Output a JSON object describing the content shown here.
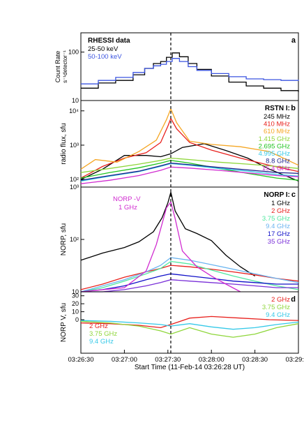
{
  "figure": {
    "xlabel": "Start Time (11-Feb-14 03:26:28 UT)",
    "x_tick_labels": [
      "03:26:30",
      "03:27:00",
      "03:27:30",
      "03:28:00",
      "03:28:30",
      "03:29:00"
    ],
    "peak_marker_time": "03:27:32"
  },
  "colors": {
    "black": "#000000",
    "red": "#e8201c",
    "orange": "#f5a623",
    "lime": "#8ed63a",
    "green": "#21c421",
    "cyan": "#35c9e8",
    "navy": "#1b1f8a",
    "magenta": "#d02bd0",
    "blue": "#3b54e0",
    "skyblue": "#48a8ee",
    "darkblue": "#1010c8",
    "purple": "#7a30d8",
    "teal": "#50e8a0",
    "lightblue": "#6ab4f0"
  },
  "chart_data": [
    {
      "type": "line",
      "panel": "a",
      "ylabel_line1": "Count Rate",
      "ylabel_line2": "s⁻¹detector⁻¹",
      "y_tick_labels": [
        "10",
        "100"
      ],
      "yscale": "log",
      "ylim": [
        10,
        250
      ],
      "legend_title": "RHESSI data",
      "series": [
        {
          "name": "25-50 keV",
          "color": "black",
          "style": "step",
          "x": [
            "03:26:30",
            "03:26:42",
            "03:26:54",
            "03:27:06",
            "03:27:14",
            "03:27:20",
            "03:27:25",
            "03:27:29",
            "03:27:33",
            "03:27:38",
            "03:27:44",
            "03:27:50",
            "03:28:00",
            "03:28:12",
            "03:28:24",
            "03:28:36",
            "03:28:48",
            "03:29:00"
          ],
          "y": [
            18,
            23,
            26,
            34,
            46,
            58,
            64,
            78,
            96,
            80,
            58,
            44,
            32,
            24,
            20,
            18,
            16,
            15
          ]
        },
        {
          "name": "50-100 keV",
          "color": "blue",
          "style": "step",
          "x": [
            "03:26:30",
            "03:26:42",
            "03:26:54",
            "03:27:06",
            "03:27:14",
            "03:27:20",
            "03:27:25",
            "03:27:29",
            "03:27:33",
            "03:27:38",
            "03:27:44",
            "03:27:50",
            "03:28:00",
            "03:28:12",
            "03:28:24",
            "03:28:36",
            "03:28:48",
            "03:29:00"
          ],
          "y": [
            22,
            26,
            30,
            38,
            46,
            52,
            56,
            64,
            74,
            64,
            50,
            42,
            36,
            31,
            28,
            27,
            26,
            27
          ]
        }
      ]
    },
    {
      "type": "line",
      "panel": "b",
      "ylabel": "radio flux, sfu",
      "y_tick_labels": [
        "10²",
        "10³",
        "10⁴"
      ],
      "yscale": "log",
      "ylim": [
        60,
        20000
      ],
      "legend_title": "RSTN  I:",
      "series": [
        {
          "name": "245 MHz",
          "color": "black",
          "x": [
            "03:26:30",
            "03:26:45",
            "03:27:00",
            "03:27:15",
            "03:27:25",
            "03:27:32",
            "03:27:40",
            "03:27:55",
            "03:28:10",
            "03:28:25",
            "03:28:40",
            "03:28:55",
            "03:29:00"
          ],
          "y": [
            100,
            200,
            500,
            500,
            460,
            560,
            860,
            1100,
            700,
            420,
            200,
            110,
            90
          ]
        },
        {
          "name": "410 MHz",
          "color": "red",
          "x": [
            "03:26:30",
            "03:26:45",
            "03:27:00",
            "03:27:15",
            "03:27:25",
            "03:27:30",
            "03:27:32",
            "03:27:36",
            "03:27:45",
            "03:28:00",
            "03:28:20",
            "03:28:40",
            "03:29:00"
          ],
          "y": [
            110,
            240,
            420,
            600,
            1200,
            3600,
            6000,
            3000,
            1200,
            720,
            420,
            260,
            170
          ]
        },
        {
          "name": "610 MHz",
          "color": "orange",
          "x": [
            "03:26:30",
            "03:26:40",
            "03:26:55",
            "03:27:10",
            "03:27:22",
            "03:27:29",
            "03:27:32",
            "03:27:36",
            "03:27:45",
            "03:28:00",
            "03:28:20",
            "03:28:40",
            "03:29:00"
          ],
          "y": [
            200,
            380,
            320,
            650,
            1400,
            5500,
            11500,
            4500,
            1300,
            1050,
            900,
            650,
            260
          ]
        },
        {
          "name": "1.415 GHz",
          "color": "lime",
          "x": [
            "03:26:30",
            "03:26:50",
            "03:27:10",
            "03:27:25",
            "03:27:32",
            "03:27:45",
            "03:28:05",
            "03:28:25",
            "03:28:45",
            "03:29:00"
          ],
          "y": [
            160,
            210,
            280,
            360,
            420,
            380,
            320,
            280,
            240,
            210
          ]
        },
        {
          "name": "2.695 GHz",
          "color": "green",
          "x": [
            "03:26:30",
            "03:26:50",
            "03:27:10",
            "03:27:25",
            "03:27:32",
            "03:27:45",
            "03:28:05",
            "03:28:25",
            "03:28:45",
            "03:29:00"
          ],
          "y": [
            110,
            160,
            220,
            300,
            360,
            300,
            210,
            150,
            110,
            95
          ]
        },
        {
          "name": "4.995 GHz",
          "color": "cyan",
          "x": [
            "03:26:30",
            "03:26:50",
            "03:27:10",
            "03:27:25",
            "03:27:32",
            "03:27:45",
            "03:28:05",
            "03:28:25",
            "03:28:45",
            "03:29:00"
          ],
          "y": [
            90,
            125,
            170,
            240,
            290,
            260,
            210,
            175,
            140,
            125
          ]
        },
        {
          "name": "8.8 GHz",
          "color": "navy",
          "x": [
            "03:26:30",
            "03:26:50",
            "03:27:10",
            "03:27:25",
            "03:27:32",
            "03:27:45",
            "03:28:05",
            "03:28:25",
            "03:28:45",
            "03:29:00"
          ],
          "y": [
            95,
            130,
            175,
            250,
            300,
            270,
            225,
            190,
            160,
            150
          ]
        },
        {
          "name": "15.4 GHz",
          "color": "magenta",
          "x": [
            "03:26:30",
            "03:26:50",
            "03:27:10",
            "03:27:25",
            "03:27:32",
            "03:27:45",
            "03:28:05",
            "03:28:25",
            "03:28:45",
            "03:29:00"
          ],
          "y": [
            75,
            95,
            130,
            185,
            230,
            215,
            185,
            155,
            130,
            120
          ]
        }
      ]
    },
    {
      "type": "line",
      "panel": "c",
      "ylabel": "NORP, sfu",
      "y_tick_labels": [
        "10",
        "10²",
        "10³"
      ],
      "yscale": "log",
      "ylim": [
        10,
        1000
      ],
      "legend_title": "NORP  I:",
      "left_legend_title": "NORP  -V",
      "left_legend_item": "1 GHz",
      "series": [
        {
          "name": "1 GHz",
          "color": "black",
          "x": [
            "03:26:30",
            "03:26:45",
            "03:27:00",
            "03:27:10",
            "03:27:20",
            "03:27:26",
            "03:27:30",
            "03:27:32",
            "03:27:35",
            "03:27:42",
            "03:27:50",
            "03:28:00",
            "03:28:10",
            "03:28:20",
            "03:28:30"
          ],
          "y": [
            40,
            55,
            70,
            90,
            140,
            260,
            500,
            800,
            350,
            160,
            130,
            95,
            50,
            30,
            20
          ]
        },
        {
          "name": "2 GHz",
          "color": "red",
          "x": [
            "03:26:30",
            "03:26:45",
            "03:27:00",
            "03:27:15",
            "03:27:25",
            "03:27:32",
            "03:27:45",
            "03:28:00",
            "03:28:15",
            "03:28:30",
            "03:28:45",
            "03:29:00"
          ],
          "y": [
            11,
            14,
            19,
            24,
            28,
            32,
            30,
            27,
            24,
            21,
            18,
            16
          ]
        },
        {
          "name": "3.75 GHz",
          "color": "teal",
          "x": [
            "03:26:30",
            "03:26:45",
            "03:27:00",
            "03:27:15",
            "03:27:25",
            "03:27:32",
            "03:27:45",
            "03:28:00",
            "03:28:15",
            "03:28:30",
            "03:28:45",
            "03:29:00"
          ],
          "y": [
            10,
            12,
            16,
            22,
            28,
            38,
            34,
            26,
            20,
            16,
            13,
            11
          ]
        },
        {
          "name": "9.4 GHz",
          "color": "lightblue",
          "x": [
            "03:26:30",
            "03:26:45",
            "03:27:00",
            "03:27:15",
            "03:27:25",
            "03:27:32",
            "03:27:45",
            "03:28:00",
            "03:28:15",
            "03:28:30",
            "03:28:45",
            "03:29:00"
          ],
          "y": [
            10,
            13,
            17,
            24,
            32,
            45,
            40,
            33,
            27,
            22,
            18,
            15
          ]
        },
        {
          "name": "17 GHz",
          "color": "darkblue",
          "x": [
            "03:26:30",
            "03:26:45",
            "03:27:00",
            "03:27:15",
            "03:27:25",
            "03:27:32",
            "03:27:45",
            "03:28:00",
            "03:28:15",
            "03:28:30",
            "03:28:45",
            "03:29:00"
          ],
          "y": [
            10,
            11,
            13,
            17,
            20,
            22,
            20,
            18,
            16,
            15,
            14,
            14
          ]
        },
        {
          "name": "35 GHz",
          "color": "purple",
          "x": [
            "03:26:30",
            "03:26:45",
            "03:27:00",
            "03:27:15",
            "03:27:25",
            "03:27:32",
            "03:27:45",
            "03:28:00",
            "03:28:15",
            "03:28:30",
            "03:28:45",
            "03:29:00"
          ],
          "y": [
            10,
            10,
            11,
            13,
            15,
            17,
            16,
            15,
            14,
            13,
            12,
            12
          ]
        },
        {
          "name": "NORP -V 1 GHz",
          "color": "magenta",
          "x": [
            "03:26:30",
            "03:27:00",
            "03:27:15",
            "03:27:22",
            "03:27:26",
            "03:27:29",
            "03:27:32",
            "03:27:35",
            "03:27:40",
            "03:27:50",
            "03:28:00",
            "03:28:10",
            "03:28:20"
          ],
          "y": [
            10,
            12,
            25,
            80,
            200,
            400,
            520,
            250,
            60,
            30,
            20,
            14,
            10
          ]
        }
      ]
    },
    {
      "type": "line",
      "panel": "d",
      "ylabel": "NORP V, sfu",
      "y_tick_labels": [
        "0",
        "10",
        "20",
        "30"
      ],
      "ylim": [
        -42,
        35
      ],
      "series": [
        {
          "name": "2 GHz",
          "color": "red",
          "x": [
            "03:26:30",
            "03:26:50",
            "03:27:10",
            "03:27:25",
            "03:27:32",
            "03:27:45",
            "03:28:00",
            "03:28:20",
            "03:28:40",
            "03:29:00"
          ],
          "y": [
            -4,
            -5,
            -7,
            -10,
            -6,
            2,
            4,
            2,
            0,
            -1
          ]
        },
        {
          "name": "3.75 GHz",
          "color": "lime",
          "x": [
            "03:26:30",
            "03:26:50",
            "03:27:10",
            "03:27:25",
            "03:27:32",
            "03:27:45",
            "03:28:00",
            "03:28:15",
            "03:28:30",
            "03:28:45",
            "03:29:00"
          ],
          "y": [
            -2,
            -4,
            -8,
            -14,
            -18,
            -10,
            -18,
            -22,
            -18,
            -10,
            -5
          ]
        },
        {
          "name": "9.4 GHz",
          "color": "cyan",
          "x": [
            "03:26:30",
            "03:26:50",
            "03:27:10",
            "03:27:25",
            "03:27:32",
            "03:27:45",
            "03:28:00",
            "03:28:15",
            "03:28:30",
            "03:28:45",
            "03:29:00"
          ],
          "y": [
            -1,
            -2,
            -4,
            -6,
            -8,
            -5,
            -9,
            -12,
            -10,
            -6,
            -3
          ]
        }
      ]
    }
  ]
}
